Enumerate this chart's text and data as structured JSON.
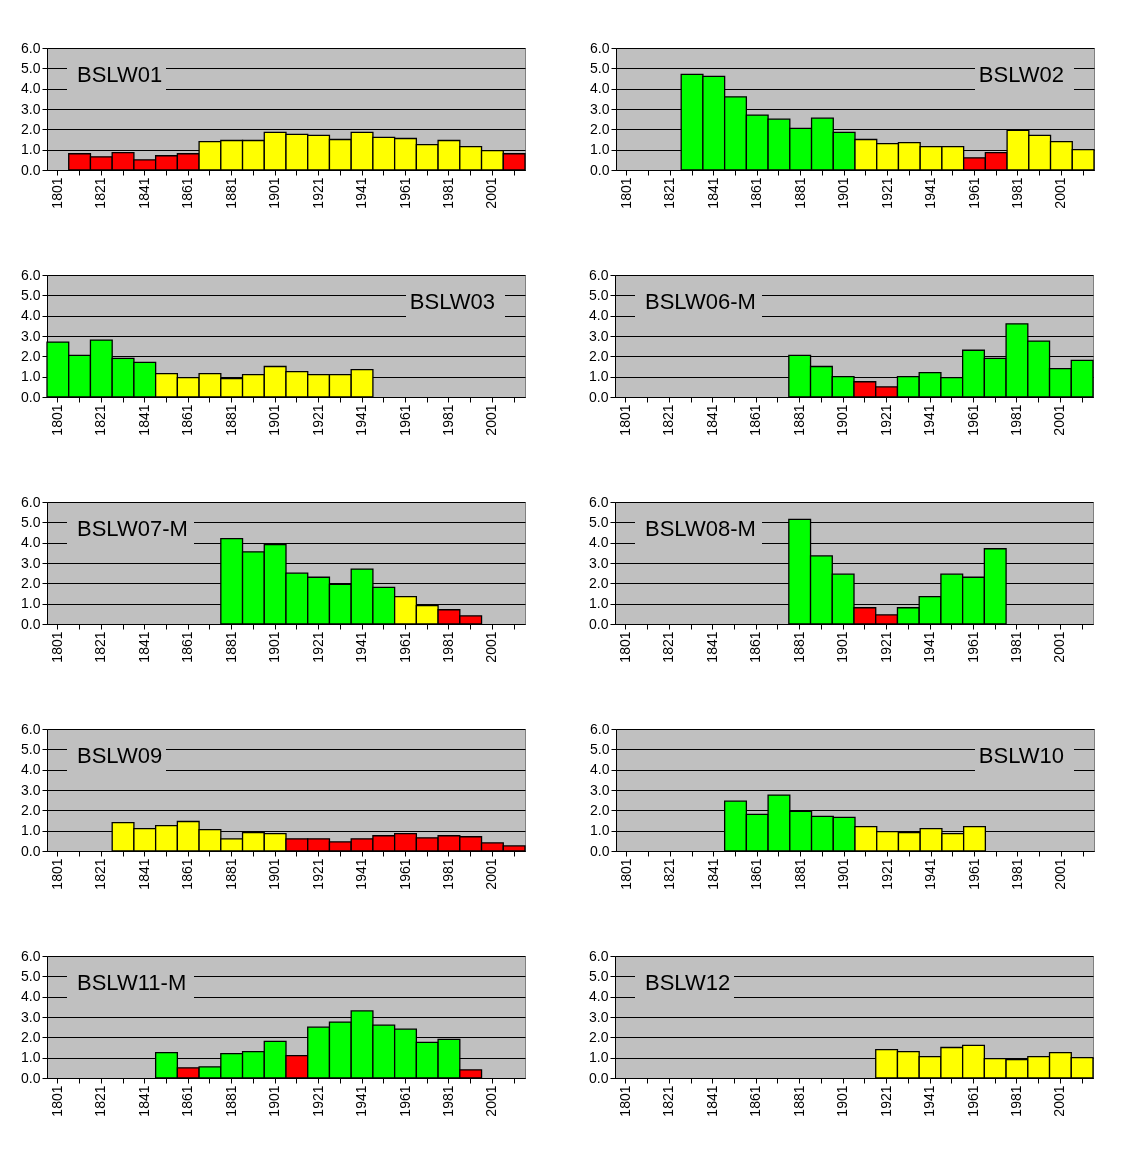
{
  "chart_data": [
    {
      "type": "bar",
      "title": "BSLW01",
      "categories": [
        "1801",
        null,
        "1821",
        null,
        "1841",
        null,
        "1861",
        null,
        "1881",
        null,
        "1901",
        null,
        "1921",
        null,
        "1941",
        null,
        "1961",
        null,
        "1981",
        null,
        "2001",
        null
      ],
      "values": [
        null,
        0.8,
        0.65,
        0.85,
        0.5,
        0.7,
        0.8,
        1.4,
        1.45,
        1.45,
        1.85,
        1.75,
        1.7,
        1.5,
        1.85,
        1.6,
        1.55,
        1.25,
        1.45,
        1.15,
        0.95,
        0.8
      ],
      "colors": [
        null,
        "#ff0000",
        "#ff0000",
        "#ff0000",
        "#ff0000",
        "#ff0000",
        "#ff0000",
        "#ffff00",
        "#ffff00",
        "#ffff00",
        "#ffff00",
        "#ffff00",
        "#ffff00",
        "#ffff00",
        "#ffff00",
        "#ffff00",
        "#ffff00",
        "#ffff00",
        "#ffff00",
        "#ffff00",
        "#ffff00",
        "#ff0000"
      ],
      "ylim": [
        0,
        6
      ],
      "yticks": [
        {
          "value": 0,
          "label": "0.0"
        },
        {
          "value": 1,
          "label": "1.0"
        },
        {
          "value": 2,
          "label": "2.0"
        },
        {
          "value": 3,
          "label": "3.0"
        },
        {
          "value": 4,
          "label": "4.0"
        },
        {
          "value": 5,
          "label": "5.0"
        },
        {
          "value": 6,
          "label": "6.0"
        }
      ],
      "grid": "y"
    },
    {
      "type": "bar",
      "title": "BSLW02",
      "categories": [
        "1801",
        null,
        "1821",
        null,
        "1841",
        null,
        "1861",
        null,
        "1881",
        null,
        "1901",
        null,
        "1921",
        null,
        "1941",
        null,
        "1961",
        null,
        "1981",
        null,
        "2001",
        null
      ],
      "values": [
        null,
        null,
        null,
        4.7,
        4.6,
        3.6,
        2.7,
        2.5,
        2.05,
        2.55,
        1.85,
        1.5,
        1.3,
        1.35,
        1.15,
        1.15,
        0.6,
        0.85,
        1.95,
        1.7,
        1.4,
        1.0
      ],
      "colors": [
        null,
        null,
        null,
        "#00ff00",
        "#00ff00",
        "#00ff00",
        "#00ff00",
        "#00ff00",
        "#00ff00",
        "#00ff00",
        "#00ff00",
        "#ffff00",
        "#ffff00",
        "#ffff00",
        "#ffff00",
        "#ffff00",
        "#ff0000",
        "#ff0000",
        "#ffff00",
        "#ffff00",
        "#ffff00",
        "#ffff00"
      ],
      "ylim": [
        0,
        6
      ],
      "yticks": [
        {
          "value": 0,
          "label": "0.0"
        },
        {
          "value": 1,
          "label": "1.0"
        },
        {
          "value": 2,
          "label": "2.0"
        },
        {
          "value": 3,
          "label": "3.0"
        },
        {
          "value": 4,
          "label": "4.0"
        },
        {
          "value": 5,
          "label": "5.0"
        },
        {
          "value": 6,
          "label": "6.0"
        }
      ],
      "grid": "y"
    },
    {
      "type": "bar",
      "title": "BSLW03",
      "categories": [
        "1801",
        null,
        "1821",
        null,
        "1841",
        null,
        "1861",
        null,
        "1881",
        null,
        "1901",
        null,
        "1921",
        null,
        "1941",
        null,
        "1961",
        null,
        "1981",
        null,
        "2001",
        null
      ],
      "values": [
        2.7,
        2.05,
        2.8,
        1.9,
        1.7,
        1.15,
        0.95,
        1.15,
        0.9,
        1.1,
        1.5,
        1.25,
        1.1,
        1.1,
        1.35,
        null,
        null,
        null,
        null,
        null,
        null,
        null
      ],
      "colors": [
        "#00ff00",
        "#00ff00",
        "#00ff00",
        "#00ff00",
        "#00ff00",
        "#ffff00",
        "#ffff00",
        "#ffff00",
        "#ffff00",
        "#ffff00",
        "#ffff00",
        "#ffff00",
        "#ffff00",
        "#ffff00",
        "#ffff00",
        null,
        null,
        null,
        null,
        null,
        null,
        null
      ],
      "ylim": [
        0,
        6
      ],
      "yticks": [
        {
          "value": 0,
          "label": "0.0"
        },
        {
          "value": 1,
          "label": "1.0"
        },
        {
          "value": 2,
          "label": "2.0"
        },
        {
          "value": 3,
          "label": "3.0"
        },
        {
          "value": 4,
          "label": "4.0"
        },
        {
          "value": 5,
          "label": "5.0"
        },
        {
          "value": 6,
          "label": "6.0"
        }
      ],
      "grid": "y"
    },
    {
      "type": "bar",
      "title": "BSLW06-M",
      "categories": [
        "1801",
        null,
        "1821",
        null,
        "1841",
        null,
        "1861",
        null,
        "1881",
        null,
        "1901",
        null,
        "1921",
        null,
        "1941",
        null,
        "1961",
        null,
        "1981",
        null,
        "2001",
        null
      ],
      "values": [
        null,
        null,
        null,
        null,
        null,
        null,
        null,
        null,
        2.05,
        1.5,
        1.0,
        0.75,
        0.5,
        1.0,
        1.2,
        0.95,
        2.3,
        1.9,
        3.6,
        2.75,
        1.4,
        1.8
      ],
      "colors": [
        null,
        null,
        null,
        null,
        null,
        null,
        null,
        null,
        "#00ff00",
        "#00ff00",
        "#00ff00",
        "#ff0000",
        "#ff0000",
        "#00ff00",
        "#00ff00",
        "#00ff00",
        "#00ff00",
        "#00ff00",
        "#00ff00",
        "#00ff00",
        "#00ff00",
        "#00ff00"
      ],
      "ylim": [
        0,
        6
      ],
      "yticks": [
        {
          "value": 0,
          "label": "0.0"
        },
        {
          "value": 1,
          "label": "1.0"
        },
        {
          "value": 2,
          "label": "2.0"
        },
        {
          "value": 3,
          "label": "3.0"
        },
        {
          "value": 4,
          "label": "4.0"
        },
        {
          "value": 5,
          "label": "5.0"
        },
        {
          "value": 6,
          "label": "6.0"
        }
      ],
      "grid": "y"
    },
    {
      "type": "bar",
      "title": "BSLW07-M",
      "categories": [
        "1801",
        null,
        "1821",
        null,
        "1841",
        null,
        "1861",
        null,
        "1881",
        null,
        "1901",
        null,
        "1921",
        null,
        "1941",
        null,
        "1961",
        null,
        "1981",
        null,
        "2001",
        null
      ],
      "values": [
        null,
        null,
        null,
        null,
        null,
        null,
        null,
        null,
        4.2,
        3.55,
        3.9,
        2.5,
        2.3,
        1.95,
        2.7,
        1.8,
        1.35,
        0.9,
        0.7,
        0.4,
        null,
        null
      ],
      "colors": [
        null,
        null,
        null,
        null,
        null,
        null,
        null,
        null,
        "#00ff00",
        "#00ff00",
        "#00ff00",
        "#00ff00",
        "#00ff00",
        "#00ff00",
        "#00ff00",
        "#00ff00",
        "#ffff00",
        "#ffff00",
        "#ff0000",
        "#ff0000",
        null,
        null
      ],
      "ylim": [
        0,
        6
      ],
      "yticks": [
        {
          "value": 0,
          "label": "0.0"
        },
        {
          "value": 1,
          "label": "1.0"
        },
        {
          "value": 2,
          "label": "2.0"
        },
        {
          "value": 3,
          "label": "3.0"
        },
        {
          "value": 4,
          "label": "4.0"
        },
        {
          "value": 5,
          "label": "5.0"
        },
        {
          "value": 6,
          "label": "6.0"
        }
      ],
      "grid": "y"
    },
    {
      "type": "bar",
      "title": "BSLW08-M",
      "categories": [
        "1801",
        null,
        "1821",
        null,
        "1841",
        null,
        "1861",
        null,
        "1881",
        null,
        "1901",
        null,
        "1921",
        null,
        "1941",
        null,
        "1961",
        null,
        "1981",
        null,
        "2001",
        null
      ],
      "values": [
        null,
        null,
        null,
        null,
        null,
        null,
        null,
        null,
        5.15,
        3.35,
        2.45,
        0.8,
        0.45,
        0.8,
        1.35,
        2.45,
        2.3,
        3.7,
        null,
        null,
        null,
        null
      ],
      "colors": [
        null,
        null,
        null,
        null,
        null,
        null,
        null,
        null,
        "#00ff00",
        "#00ff00",
        "#00ff00",
        "#ff0000",
        "#ff0000",
        "#00ff00",
        "#00ff00",
        "#00ff00",
        "#00ff00",
        "#00ff00",
        null,
        null,
        null,
        null
      ],
      "ylim": [
        0,
        6
      ],
      "yticks": [
        {
          "value": 0,
          "label": "0.0"
        },
        {
          "value": 1,
          "label": "1.0"
        },
        {
          "value": 2,
          "label": "2.0"
        },
        {
          "value": 3,
          "label": "3.0"
        },
        {
          "value": 4,
          "label": "4.0"
        },
        {
          "value": 5,
          "label": "5.0"
        },
        {
          "value": 6,
          "label": "6.0"
        }
      ],
      "grid": "y"
    },
    {
      "type": "bar",
      "title": "BSLW09",
      "categories": [
        "1801",
        null,
        "1821",
        null,
        "1841",
        null,
        "1861",
        null,
        "1881",
        null,
        "1901",
        null,
        "1921",
        null,
        "1941",
        null,
        "1961",
        null,
        "1981",
        null,
        "2001",
        null
      ],
      "values": [
        null,
        null,
        null,
        1.4,
        1.1,
        1.25,
        1.45,
        1.05,
        0.6,
        0.9,
        0.85,
        0.6,
        0.6,
        0.45,
        0.6,
        0.75,
        0.85,
        0.65,
        0.75,
        0.7,
        0.4,
        0.25
      ],
      "colors": [
        null,
        null,
        null,
        "#ffff00",
        "#ffff00",
        "#ffff00",
        "#ffff00",
        "#ffff00",
        "#ffff00",
        "#ffff00",
        "#ffff00",
        "#ff0000",
        "#ff0000",
        "#ff0000",
        "#ff0000",
        "#ff0000",
        "#ff0000",
        "#ff0000",
        "#ff0000",
        "#ff0000",
        "#ff0000",
        "#ff0000"
      ],
      "ylim": [
        0,
        6
      ],
      "yticks": [
        {
          "value": 0,
          "label": "0.0"
        },
        {
          "value": 1,
          "label": "1.0"
        },
        {
          "value": 2,
          "label": "2.0"
        },
        {
          "value": 3,
          "label": "3.0"
        },
        {
          "value": 4,
          "label": "4.0"
        },
        {
          "value": 5,
          "label": "5.0"
        },
        {
          "value": 6,
          "label": "6.0"
        }
      ],
      "grid": "y"
    },
    {
      "type": "bar",
      "title": "BSLW10",
      "categories": [
        "1801",
        null,
        "1821",
        null,
        "1841",
        null,
        "1861",
        null,
        "1881",
        null,
        "1901",
        null,
        "1921",
        null,
        "1941",
        null,
        "1961",
        null,
        "1981",
        null,
        "2001",
        null
      ],
      "values": [
        null,
        null,
        null,
        null,
        null,
        2.45,
        1.8,
        2.75,
        1.95,
        1.7,
        1.65,
        1.2,
        0.95,
        0.9,
        1.1,
        0.85,
        1.2,
        null,
        null,
        null,
        null,
        null
      ],
      "colors": [
        null,
        null,
        null,
        null,
        null,
        "#00ff00",
        "#00ff00",
        "#00ff00",
        "#00ff00",
        "#00ff00",
        "#00ff00",
        "#ffff00",
        "#ffff00",
        "#ffff00",
        "#ffff00",
        "#ffff00",
        "#ffff00",
        null,
        null,
        null,
        null,
        null
      ],
      "ylim": [
        0,
        6
      ],
      "yticks": [
        {
          "value": 0,
          "label": "0.0"
        },
        {
          "value": 1,
          "label": "1.0"
        },
        {
          "value": 2,
          "label": "2.0"
        },
        {
          "value": 3,
          "label": "3.0"
        },
        {
          "value": 4,
          "label": "4.0"
        },
        {
          "value": 5,
          "label": "5.0"
        },
        {
          "value": 6,
          "label": "6.0"
        }
      ],
      "grid": "y"
    },
    {
      "type": "bar",
      "title": "BSLW11-M",
      "categories": [
        "1801",
        null,
        "1821",
        null,
        "1841",
        null,
        "1861",
        null,
        "1881",
        null,
        "1901",
        null,
        "1921",
        null,
        "1941",
        null,
        "1961",
        null,
        "1981",
        null,
        "2001",
        null
      ],
      "values": [
        null,
        null,
        null,
        null,
        null,
        1.25,
        0.5,
        0.55,
        1.2,
        1.3,
        1.8,
        1.1,
        2.5,
        2.75,
        3.3,
        2.6,
        2.4,
        1.75,
        1.9,
        0.4,
        null,
        null
      ],
      "colors": [
        null,
        null,
        null,
        null,
        null,
        "#00ff00",
        "#ff0000",
        "#00ff00",
        "#00ff00",
        "#00ff00",
        "#00ff00",
        "#ff0000",
        "#00ff00",
        "#00ff00",
        "#00ff00",
        "#00ff00",
        "#00ff00",
        "#00ff00",
        "#00ff00",
        "#ff0000",
        null,
        null
      ],
      "ylim": [
        0,
        6
      ],
      "yticks": [
        {
          "value": 0,
          "label": "0.0"
        },
        {
          "value": 1,
          "label": "1.0"
        },
        {
          "value": 2,
          "label": "2.0"
        },
        {
          "value": 3,
          "label": "3.0"
        },
        {
          "value": 4,
          "label": "4.0"
        },
        {
          "value": 5,
          "label": "5.0"
        },
        {
          "value": 6,
          "label": "6.0"
        }
      ],
      "grid": "y"
    },
    {
      "type": "bar",
      "title": "BSLW12",
      "categories": [
        "1801",
        null,
        "1821",
        null,
        "1841",
        null,
        "1861",
        null,
        "1881",
        null,
        "1901",
        null,
        "1921",
        null,
        "1941",
        null,
        "1961",
        null,
        "1981",
        null,
        "2001",
        null
      ],
      "values": [
        null,
        null,
        null,
        null,
        null,
        null,
        null,
        null,
        null,
        null,
        null,
        null,
        1.4,
        1.3,
        1.05,
        1.5,
        1.6,
        0.95,
        0.9,
        1.05,
        1.25,
        1.0
      ],
      "colors": [
        null,
        null,
        null,
        null,
        null,
        null,
        null,
        null,
        null,
        null,
        null,
        null,
        "#ffff00",
        "#ffff00",
        "#ffff00",
        "#ffff00",
        "#ffff00",
        "#ffff00",
        "#ffff00",
        "#ffff00",
        "#ffff00",
        "#ffff00"
      ],
      "ylim": [
        0,
        6
      ],
      "yticks": [
        {
          "value": 0,
          "label": "0.0"
        },
        {
          "value": 1,
          "label": "1.0"
        },
        {
          "value": 2,
          "label": "2.0"
        },
        {
          "value": 3,
          "label": "3.0"
        },
        {
          "value": 4,
          "label": "4.0"
        },
        {
          "value": 5,
          "label": "5.0"
        },
        {
          "value": 6,
          "label": "6.0"
        }
      ],
      "grid": "y"
    }
  ]
}
